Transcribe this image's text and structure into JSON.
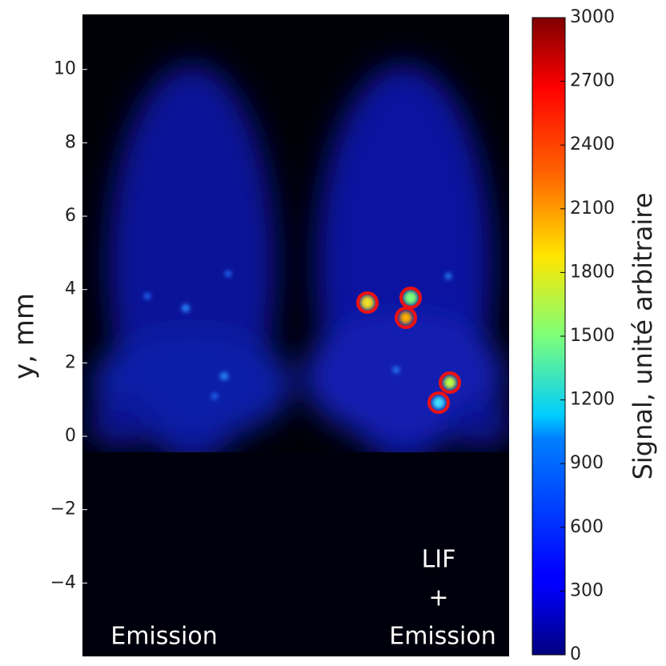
{
  "chart_data": {
    "type": "heatmap",
    "ylabel": "y, mm",
    "ylim": [
      -6,
      11.5
    ],
    "yticks": [
      {
        "value": -4,
        "label": "−4"
      },
      {
        "value": -2,
        "label": "−2"
      },
      0,
      2,
      4,
      6,
      8,
      10
    ],
    "colormap": "jet",
    "colorbar": {
      "label": "Signal, unité  arbitraire",
      "lim": [
        0,
        3000
      ],
      "ticks": [
        0,
        300,
        600,
        900,
        1200,
        1500,
        1800,
        2100,
        2400,
        2700,
        3000
      ]
    },
    "annotations": [
      "Emission",
      "LIF",
      "+",
      "Emission"
    ]
  }
}
